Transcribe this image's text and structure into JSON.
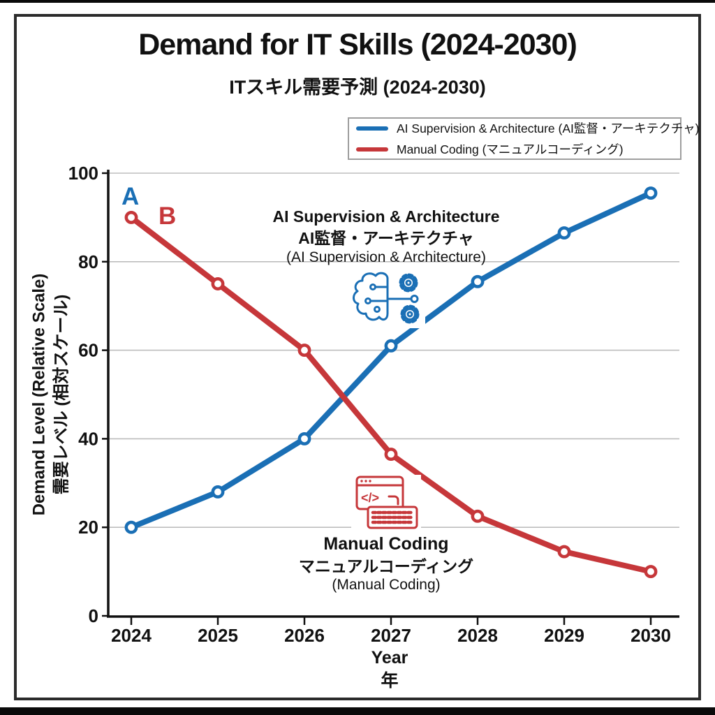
{
  "page": {
    "title": "Demand for IT Skills (2024-2030)",
    "subtitle": "ITスキル需要予測 (2024-2030)"
  },
  "legend": {
    "items": [
      {
        "label": "AI Supervision & Architecture (AI監督・アーキテクチャ)",
        "color": "#1a6fb5"
      },
      {
        "label": "Manual Coding (マニュアルコーディング)",
        "color": "#c6373a"
      }
    ]
  },
  "annotations": {
    "ai": {
      "title_en": "AI Supervision & Architecture",
      "title_ja": "AI監督・アーキテクチャ",
      "caption": "(AI Supervision & Architecture)",
      "icon": "brain-circuit-gears-icon"
    },
    "manual": {
      "title_en": "Manual Coding",
      "title_ja": "マニュアルコーディング",
      "caption": "(Manual Coding)",
      "icon": "code-window-keyboard-icon"
    }
  },
  "colors": {
    "series_blue": "#1a6fb5",
    "series_red": "#c6373a",
    "grid_line": "#bdbdbd",
    "axis_line": "#111111",
    "frame_border": "#2b2b2b",
    "background": "#ffffff"
  },
  "chart_data": {
    "type": "line",
    "title": "Demand for IT Skills (2024-2030)",
    "subtitle": "ITスキル需要予測 (2024-2030)",
    "x": [
      2024,
      2025,
      2026,
      2027,
      2028,
      2029,
      2030
    ],
    "x_ticks": [
      "2024",
      "2025",
      "2026",
      "2027",
      "2028",
      "2029",
      "2030"
    ],
    "y_ticks": [
      0,
      20,
      40,
      60,
      80,
      100
    ],
    "series": [
      {
        "name": "AI Supervision & Architecture (AI監督・アーキテクチャ)",
        "label": "A",
        "color": "#1a6fb5",
        "values": [
          20,
          28,
          40,
          61,
          75.5,
          86.5,
          95.5
        ]
      },
      {
        "name": "Manual Coding (マニュアルコーディング)",
        "label": "B",
        "color": "#c6373a",
        "values": [
          90,
          75,
          60,
          36.5,
          22.5,
          14.5,
          10
        ]
      }
    ],
    "xlabel": "Year",
    "xlabel_ja": "年",
    "ylabel": "Demand Level (Relative Scale)",
    "ylabel_ja": "需要レベル (相対スケール)",
    "ylim": [
      0,
      100
    ],
    "grid": true,
    "legend_position": "top-right",
    "marker": "open-circle"
  }
}
